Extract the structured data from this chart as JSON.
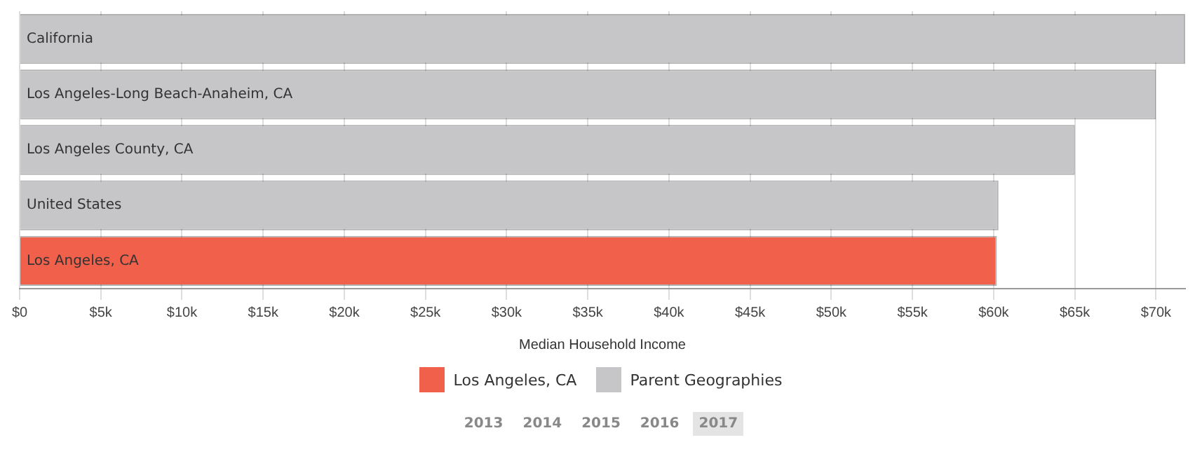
{
  "chart_data": {
    "type": "bar",
    "orientation": "horizontal",
    "stacked": true,
    "categories": [
      "California",
      "Los Angeles-Long Beach-Anaheim, CA",
      "Los Angeles County, CA",
      "United States",
      "Los Angeles, CA"
    ],
    "series": [
      {
        "name": "Los Angeles, CA",
        "color": "#f0604a",
        "values": [
          null,
          null,
          null,
          null,
          60200
        ]
      },
      {
        "name": "Parent Geographies",
        "color": "#c6c6c9",
        "values": [
          71800,
          70000,
          65000,
          60300,
          null
        ]
      }
    ],
    "xlabel": "Median Household Income",
    "xlim": [
      0,
      71800
    ],
    "xticks": [
      {
        "value": 0,
        "label": "$0"
      },
      {
        "value": 5000,
        "label": "$5k"
      },
      {
        "value": 10000,
        "label": "$10k"
      },
      {
        "value": 15000,
        "label": "$15k"
      },
      {
        "value": 20000,
        "label": "$20k"
      },
      {
        "value": 25000,
        "label": "$25k"
      },
      {
        "value": 30000,
        "label": "$30k"
      },
      {
        "value": 35000,
        "label": "$35k"
      },
      {
        "value": 40000,
        "label": "$40k"
      },
      {
        "value": 45000,
        "label": "$45k"
      },
      {
        "value": 50000,
        "label": "$50k"
      },
      {
        "value": 55000,
        "label": "$55k"
      },
      {
        "value": 60000,
        "label": "$60k"
      },
      {
        "value": 65000,
        "label": "$65k"
      },
      {
        "value": 70000,
        "label": "$70k"
      }
    ],
    "grid": "x",
    "legend": "bottom",
    "tick_labels": "x",
    "annotations": [
      "2013",
      "2014",
      "2015",
      "2016",
      "2017"
    ]
  }
}
